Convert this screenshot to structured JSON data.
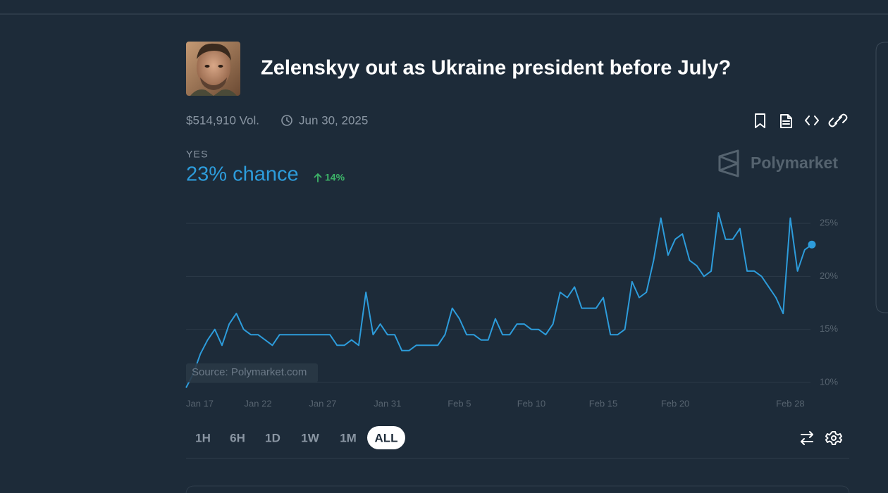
{
  "header": {
    "title": "Zelenskyy out as Ukraine president before July?",
    "volume": "$514,910 Vol.",
    "end_date": "Jun 30, 2025"
  },
  "outcome": {
    "label": "YES",
    "chance": "23% chance",
    "change": "14%"
  },
  "brand": "Polymarket",
  "source": "Source: Polymarket.com",
  "chart_data": {
    "type": "line",
    "color": "#2d9cdb",
    "grid": true,
    "categories": [
      "Jan 17",
      null,
      null,
      null,
      null,
      null,
      null,
      null,
      null,
      null,
      "Jan 22",
      null,
      null,
      null,
      null,
      null,
      null,
      null,
      null,
      "Jan 27",
      null,
      null,
      null,
      null,
      null,
      null,
      null,
      null,
      "Jan 31",
      null,
      null,
      null,
      null,
      null,
      null,
      null,
      null,
      null,
      "Feb 5",
      null,
      null,
      null,
      null,
      null,
      null,
      null,
      null,
      null,
      "Feb 10",
      null,
      null,
      null,
      null,
      null,
      null,
      null,
      null,
      null,
      "Feb 15",
      null,
      null,
      null,
      null,
      null,
      null,
      null,
      null,
      null,
      "Feb 20",
      null,
      null,
      null,
      null,
      null,
      null,
      null,
      null,
      null,
      null,
      null,
      null,
      null,
      null,
      null,
      "Feb 28",
      null,
      null,
      null
    ],
    "values": [
      9.5,
      10.8,
      12.7,
      14,
      15,
      13.5,
      15.5,
      16.5,
      15,
      14.5,
      14.5,
      14,
      13.5,
      14.5,
      14.5,
      14.5,
      14.5,
      14.5,
      14.5,
      14.5,
      14.5,
      13.5,
      13.5,
      14,
      13.5,
      18.5,
      14.5,
      15.5,
      14.5,
      14.5,
      13,
      13,
      13.5,
      13.5,
      13.5,
      13.5,
      14.5,
      17,
      16,
      14.5,
      14.5,
      14,
      14,
      16,
      14.5,
      14.5,
      15.5,
      15.5,
      15,
      15,
      14.5,
      15.5,
      18.5,
      18,
      19,
      17,
      17,
      17,
      18,
      14.5,
      14.5,
      15,
      19.5,
      18,
      18.5,
      21.5,
      25.5,
      22,
      23.5,
      24,
      21.5,
      21,
      20,
      20.5,
      26,
      23.5,
      23.5,
      24.5,
      20.5,
      20.5,
      20,
      19,
      18,
      16.5,
      25.5,
      20.5,
      22.5,
      23
    ],
    "ylim": [
      9.2,
      26.8
    ],
    "yticks": [
      {
        "value": 10,
        "label": "10%"
      },
      {
        "value": 15,
        "label": "15%"
      },
      {
        "value": 20,
        "label": "20%"
      },
      {
        "value": 25,
        "label": "25%"
      }
    ]
  },
  "range_buttons": [
    {
      "label": "1H"
    },
    {
      "label": "6H"
    },
    {
      "label": "1D"
    },
    {
      "label": "1W"
    },
    {
      "label": "1M"
    },
    {
      "label": "ALL",
      "selected": true
    }
  ]
}
